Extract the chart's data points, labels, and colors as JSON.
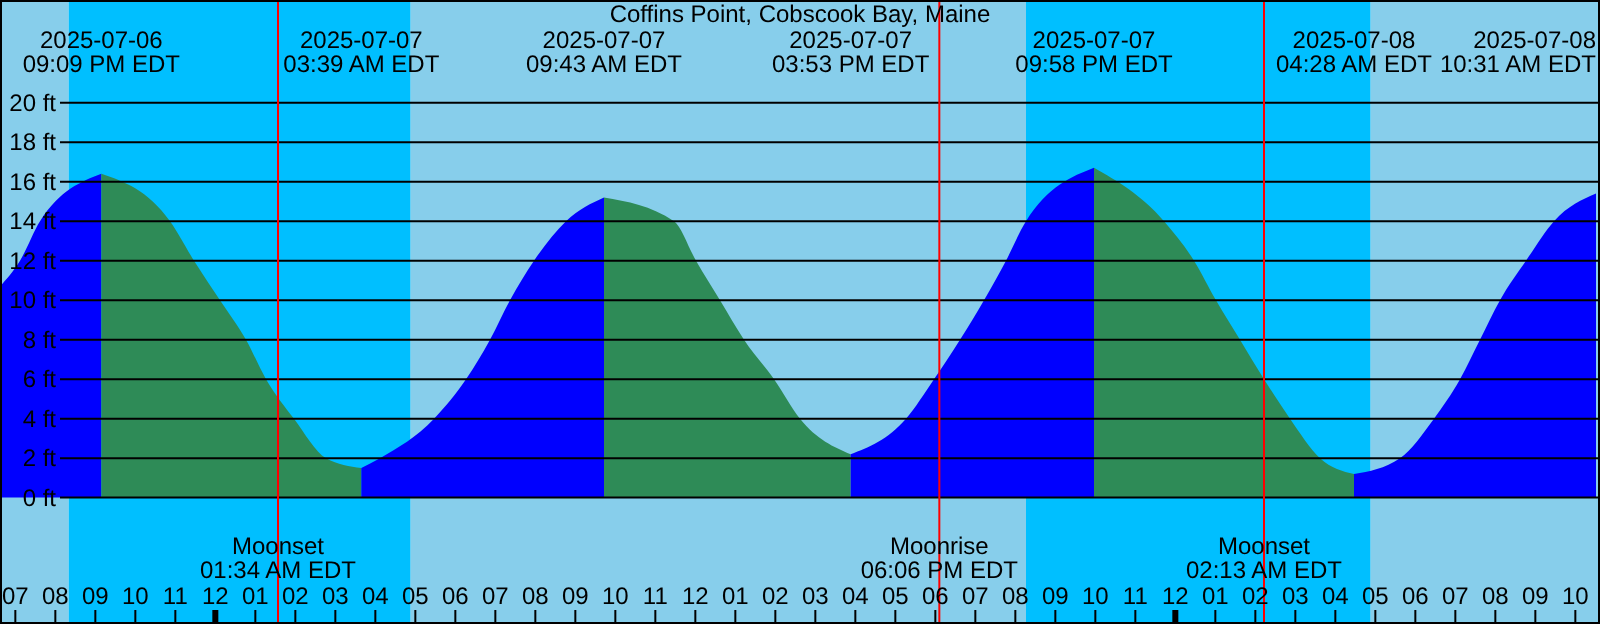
{
  "chart_data": {
    "type": "area",
    "title": "Coffins Point, Cobscook Bay, Maine",
    "xlim": [
      "2025-07-06T18:37",
      "2025-07-08T10:37"
    ],
    "xticks": [
      {
        "value": "2025-07-06T19:00",
        "label": "07"
      },
      {
        "value": "2025-07-06T20:00",
        "label": "08"
      },
      {
        "value": "2025-07-06T21:00",
        "label": "09"
      },
      {
        "value": "2025-07-06T22:00",
        "label": "10"
      },
      {
        "value": "2025-07-06T23:00",
        "label": "11"
      },
      {
        "value": "2025-07-07T00:00",
        "label": "12"
      },
      {
        "value": "2025-07-07T01:00",
        "label": "01"
      },
      {
        "value": "2025-07-07T02:00",
        "label": "02"
      },
      {
        "value": "2025-07-07T03:00",
        "label": "03"
      },
      {
        "value": "2025-07-07T04:00",
        "label": "04"
      },
      {
        "value": "2025-07-07T05:00",
        "label": "05"
      },
      {
        "value": "2025-07-07T06:00",
        "label": "06"
      },
      {
        "value": "2025-07-07T07:00",
        "label": "07"
      },
      {
        "value": "2025-07-07T08:00",
        "label": "08"
      },
      {
        "value": "2025-07-07T09:00",
        "label": "09"
      },
      {
        "value": "2025-07-07T10:00",
        "label": "10"
      },
      {
        "value": "2025-07-07T11:00",
        "label": "11"
      },
      {
        "value": "2025-07-07T12:00",
        "label": "12"
      },
      {
        "value": "2025-07-07T13:00",
        "label": "01"
      },
      {
        "value": "2025-07-07T14:00",
        "label": "02"
      },
      {
        "value": "2025-07-07T15:00",
        "label": "03"
      },
      {
        "value": "2025-07-07T16:00",
        "label": "04"
      },
      {
        "value": "2025-07-07T17:00",
        "label": "05"
      },
      {
        "value": "2025-07-07T18:00",
        "label": "06"
      },
      {
        "value": "2025-07-07T19:00",
        "label": "07"
      },
      {
        "value": "2025-07-07T20:00",
        "label": "08"
      },
      {
        "value": "2025-07-07T21:00",
        "label": "09"
      },
      {
        "value": "2025-07-07T22:00",
        "label": "10"
      },
      {
        "value": "2025-07-07T23:00",
        "label": "11"
      },
      {
        "value": "2025-07-08T00:00",
        "label": "12"
      },
      {
        "value": "2025-07-08T01:00",
        "label": "01"
      },
      {
        "value": "2025-07-08T02:00",
        "label": "02"
      },
      {
        "value": "2025-07-08T03:00",
        "label": "03"
      },
      {
        "value": "2025-07-08T04:00",
        "label": "04"
      },
      {
        "value": "2025-07-08T05:00",
        "label": "05"
      },
      {
        "value": "2025-07-08T06:00",
        "label": "06"
      },
      {
        "value": "2025-07-08T07:00",
        "label": "07"
      },
      {
        "value": "2025-07-08T08:00",
        "label": "08"
      },
      {
        "value": "2025-07-08T09:00",
        "label": "09"
      },
      {
        "value": "2025-07-08T10:00",
        "label": "10"
      }
    ],
    "x2lim": [
      "2025-07-06T18:37",
      "2025-07-08T10:37"
    ],
    "x2ticks": [
      {
        "value": "2025-07-06T21:09",
        "label": "2025-07-06\n09:09 PM EDT"
      },
      {
        "value": "2025-07-07T03:39",
        "label": "2025-07-07\n03:39 AM EDT"
      },
      {
        "value": "2025-07-07T09:43",
        "label": "2025-07-07\n09:43 AM EDT"
      },
      {
        "value": "2025-07-07T15:53",
        "label": "2025-07-07\n03:53 PM EDT"
      },
      {
        "value": "2025-07-07T21:58",
        "label": "2025-07-07\n09:58 PM EDT"
      },
      {
        "value": "2025-07-08T04:28",
        "label": "2025-07-08\n04:28 AM EDT"
      },
      {
        "value": "2025-07-08T10:31",
        "label": "2025-07-08\n10:31 AM EDT"
      }
    ],
    "ylim": [
      -6.4,
      25.2
    ],
    "yticks": [
      {
        "value": 0,
        "label": "0 ft"
      },
      {
        "value": 2,
        "label": "2 ft"
      },
      {
        "value": 4,
        "label": "4 ft"
      },
      {
        "value": 6,
        "label": "6 ft"
      },
      {
        "value": 8,
        "label": "8 ft"
      },
      {
        "value": 10,
        "label": "10 ft"
      },
      {
        "value": 12,
        "label": "12 ft"
      },
      {
        "value": 14,
        "label": "14 ft"
      },
      {
        "value": 16,
        "label": "16 ft"
      },
      {
        "value": 18,
        "label": "18 ft"
      },
      {
        "value": 20,
        "label": "20 ft"
      }
    ],
    "grid": "y",
    "x": [
      "2025-07-06T18:37",
      "2025-07-06T19:07",
      "2025-07-06T19:37",
      "2025-07-06T21:09",
      "2025-07-06T22:52",
      "2025-07-06T23:28",
      "2025-07-07T00:07",
      "2025-07-07T00:46",
      "2025-07-07T01:16",
      "2025-07-07T01:58",
      "2025-07-07T02:46",
      "2025-07-07T03:39",
      "2025-07-07T04:07",
      "2025-07-07T05:28",
      "2025-07-07T06:16",
      "2025-07-07T06:52",
      "2025-07-07T07:22",
      "2025-07-07T07:58",
      "2025-07-07T08:46",
      "2025-07-07T09:43",
      "2025-07-07T11:28",
      "2025-07-07T12:01",
      "2025-07-07T12:37",
      "2025-07-07T13:13",
      "2025-07-07T13:58",
      "2025-07-07T14:37",
      "2025-07-07T15:53",
      "2025-07-07T17:16",
      "2025-07-07T17:58",
      "2025-07-07T18:37",
      "2025-07-07T19:13",
      "2025-07-07T19:46",
      "2025-07-07T20:16",
      "2025-07-07T21:58",
      "2025-07-07T23:43",
      "2025-07-08T00:28",
      "2025-07-08T01:01",
      "2025-07-08T01:37",
      "2025-07-08T02:13",
      "2025-07-08T02:52",
      "2025-07-08T03:37",
      "2025-07-08T04:28",
      "2025-07-08T05:37",
      "2025-07-08T06:28",
      "2025-07-08T07:07",
      "2025-07-08T07:37",
      "2025-07-08T08:07",
      "2025-07-08T08:46",
      "2025-07-08T09:28",
      "2025-07-08T10:31"
    ],
    "series": [
      {
        "color": "#0000ff",
        "values": [
          10.7,
          12,
          14,
          16.4,
          null,
          null,
          null,
          null,
          null,
          null,
          null,
          null,
          null,
          null,
          null,
          null,
          null,
          null,
          null,
          null,
          null,
          null,
          null,
          null,
          null,
          null,
          null,
          null,
          null,
          null,
          null,
          null,
          null,
          null,
          null,
          null,
          null,
          null,
          null,
          null,
          null,
          null,
          null,
          null,
          null,
          null,
          null,
          null,
          null,
          null
        ]
      },
      {
        "color": "#2e8b57",
        "values": [
          null,
          null,
          null,
          16.4,
          14,
          12,
          10,
          8,
          6,
          4,
          2,
          1.5,
          null,
          null,
          null,
          null,
          null,
          null,
          null,
          null,
          null,
          null,
          null,
          null,
          null,
          null,
          null,
          null,
          null,
          null,
          null,
          null,
          null,
          null,
          null,
          null,
          null,
          null,
          null,
          null,
          null,
          null,
          null,
          null,
          null,
          null,
          null,
          null,
          null,
          null
        ]
      },
      {
        "color": "#0000ff",
        "values": [
          null,
          null,
          null,
          null,
          null,
          null,
          null,
          null,
          null,
          null,
          null,
          1.5,
          2,
          4,
          6,
          8,
          10,
          12,
          14,
          15.2,
          null,
          null,
          null,
          null,
          null,
          null,
          null,
          null,
          null,
          null,
          null,
          null,
          null,
          null,
          null,
          null,
          null,
          null,
          null,
          null,
          null,
          null,
          null,
          null,
          null,
          null,
          null,
          null,
          null,
          null
        ]
      },
      {
        "color": "#2e8b57",
        "values": [
          null,
          null,
          null,
          null,
          null,
          null,
          null,
          null,
          null,
          null,
          null,
          null,
          null,
          null,
          null,
          null,
          null,
          null,
          null,
          15.2,
          14,
          12,
          10,
          8,
          6,
          4,
          2.2,
          null,
          null,
          null,
          null,
          null,
          null,
          null,
          null,
          null,
          null,
          null,
          null,
          null,
          null,
          null,
          null,
          null,
          null,
          null,
          null,
          null,
          null,
          null
        ]
      },
      {
        "color": "#0000ff",
        "values": [
          null,
          null,
          null,
          null,
          null,
          null,
          null,
          null,
          null,
          null,
          null,
          null,
          null,
          null,
          null,
          null,
          null,
          null,
          null,
          null,
          null,
          null,
          null,
          null,
          null,
          null,
          2.2,
          4,
          6,
          8,
          10,
          12,
          14,
          16.7,
          null,
          null,
          null,
          null,
          null,
          null,
          null,
          null,
          null,
          null,
          null,
          null,
          null,
          null,
          null,
          null
        ]
      },
      {
        "color": "#2e8b57",
        "values": [
          null,
          null,
          null,
          null,
          null,
          null,
          null,
          null,
          null,
          null,
          null,
          null,
          null,
          null,
          null,
          null,
          null,
          null,
          null,
          null,
          null,
          null,
          null,
          null,
          null,
          null,
          null,
          null,
          null,
          null,
          null,
          null,
          null,
          16.7,
          14,
          12,
          10,
          8,
          6,
          4,
          2,
          1.2,
          null,
          null,
          null,
          null,
          null,
          null,
          null,
          null
        ]
      },
      {
        "color": "#0000ff",
        "values": [
          null,
          null,
          null,
          null,
          null,
          null,
          null,
          null,
          null,
          null,
          null,
          null,
          null,
          null,
          null,
          null,
          null,
          null,
          null,
          null,
          null,
          null,
          null,
          null,
          null,
          null,
          null,
          null,
          null,
          null,
          null,
          null,
          null,
          null,
          null,
          null,
          null,
          null,
          null,
          null,
          null,
          1.2,
          2,
          4,
          6,
          8,
          10,
          12,
          14,
          15.4
        ]
      }
    ],
    "bands": [
      {
        "axis": "x",
        "from": "2025-07-06T18:37",
        "to": "2025-07-06T20:20",
        "color": "#87ceeb"
      },
      {
        "axis": "x",
        "from": "2025-07-06T20:20",
        "to": "2025-07-07T04:53",
        "color": "#00bfff"
      },
      {
        "axis": "x",
        "from": "2025-07-07T04:53",
        "to": "2025-07-07T20:16",
        "color": "#87ceeb"
      },
      {
        "axis": "x",
        "from": "2025-07-07T20:16",
        "to": "2025-07-08T04:53",
        "color": "#00bfff"
      },
      {
        "axis": "x",
        "from": "2025-07-08T04:53",
        "to": "2025-07-08T10:37",
        "color": "#87ceeb"
      }
    ],
    "ref_lines": [
      {
        "axis": "x",
        "value": "2025-07-07T01:34",
        "label": "Moonset\n01:34 AM EDT",
        "color": "#ff0000"
      },
      {
        "axis": "x",
        "value": "2025-07-07T18:06",
        "label": "Moonrise\n06:06 PM EDT",
        "color": "#ff0000"
      },
      {
        "axis": "x",
        "value": "2025-07-08T02:13",
        "label": "Moonset\n02:13 AM EDT",
        "color": "#ff0000"
      }
    ]
  }
}
